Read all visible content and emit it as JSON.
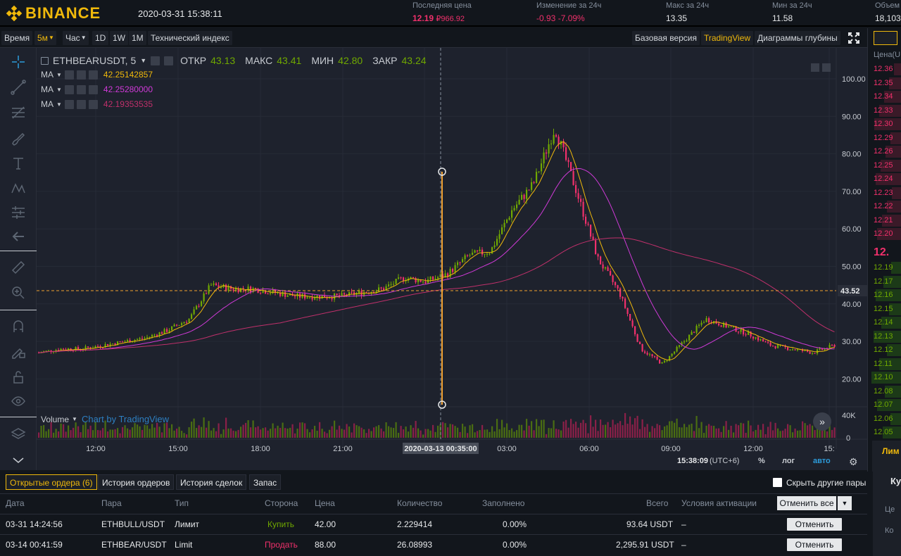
{
  "header": {
    "logo_text": "BINANCE",
    "datetime": "2020-03-31 15:38:11",
    "last_price_label": "Последняя цена",
    "last_price": "12.19",
    "last_price_rub": "₽966.92",
    "change_label": "Изменение за 24ч",
    "change_abs": "-0.93",
    "change_pct": "-7.09%",
    "high_label": "Макс за 24ч",
    "high_value": "13.35",
    "low_label": "Мин за 24ч",
    "low_value": "11.58",
    "volume_label": "Объем",
    "volume_value": "18,103,"
  },
  "toolbar": {
    "time": "Время",
    "m5": "5м",
    "hour": "Час",
    "d1": "1D",
    "w1": "1W",
    "mo1": "1M",
    "tech": "Технический индекс",
    "basic": "Базовая версия",
    "tv": "TradingView",
    "depth": "Диаграммы глубины"
  },
  "legend": {
    "symbol": "ETHBEARUSDT, 5",
    "open_label": "ОТКР",
    "open": "43.13",
    "high_label": "МАКС",
    "high": "43.41",
    "low_label": "МИН",
    "low": "42.80",
    "close_label": "ЗАКР",
    "close": "43.24",
    "ma_label": "MA",
    "ma1": "42.25142857",
    "ma2": "42.25280000",
    "ma3": "42.19353535",
    "volume_label": "Volume",
    "tv_brand": "Chart by TradingView"
  },
  "axis": {
    "y_ticks": [
      "100.00",
      "90.00",
      "80.00",
      "70.00",
      "60.00",
      "50.00",
      "40.00",
      "30.00",
      "20.00"
    ],
    "price_tag": "43.52",
    "vol_tick": "40K",
    "vol_zero": "0",
    "x_ticks": [
      "12:00",
      "15:00",
      "18:00",
      "21:00",
      "03:00",
      "06:00",
      "09:00",
      "12:00",
      "15:"
    ],
    "crosshair_date": "2020-03-13 00:35:00",
    "clock": "15:38:09",
    "tz": "(UTC+6)",
    "pct": "%",
    "log": "лог",
    "auto": "авто"
  },
  "chart_data": {
    "type": "line",
    "x": [
      "11:00",
      "12:00",
      "13:00",
      "14:00",
      "15:00",
      "16:00",
      "17:00",
      "17:30",
      "18:00",
      "19:00",
      "20:00",
      "21:00",
      "22:00",
      "23:00",
      "00:00",
      "01:00",
      "02:00",
      "03:00",
      "04:00",
      "05:00",
      "06:00",
      "07:00",
      "07:30",
      "08:00",
      "08:15",
      "08:30",
      "08:45",
      "09:00",
      "09:15",
      "09:30",
      "10:00",
      "10:30",
      "11:00",
      "12:00",
      "13:00",
      "14:00",
      "15:00",
      "15:30"
    ],
    "series": [
      {
        "values": [
          27,
          28,
          28,
          29,
          30,
          31,
          33,
          36,
          45,
          44,
          44,
          43,
          42,
          42,
          42,
          43,
          44,
          47,
          46,
          48,
          53,
          54,
          65,
          72,
          87,
          70,
          52,
          43,
          28,
          24,
          30,
          36,
          34,
          32,
          29,
          28,
          27,
          29
        ]
      }
    ],
    "ylim": [
      15,
      105
    ],
    "volume_ylim": [
      0,
      40000
    ]
  },
  "orders": {
    "tabs": [
      "Открытые ордера (6)",
      "История ордеров",
      "История сделок",
      "Запас"
    ],
    "hide_pairs": "Скрыть другие пары",
    "columns": [
      "Дата",
      "Пара",
      "Тип",
      "Сторона",
      "Цена",
      "Количество",
      "Заполнено",
      "Всего",
      "Условия активации"
    ],
    "cancel_all": "Отменить все",
    "rows": [
      {
        "date": "03-31 14:24:56",
        "pair": "ETHBULL/USDT",
        "type": "Лимит",
        "side": "Купить",
        "price": "42.00",
        "qty": "2.229414",
        "filled": "0.00%",
        "total": "93.64 USDT",
        "cond": "–",
        "action": "Отменить"
      },
      {
        "date": "03-14 00:41:59",
        "pair": "ETHBEAR/USDT",
        "type": "Limit",
        "side": "Продать",
        "price": "88.00",
        "qty": "26.08993",
        "filled": "0.00%",
        "total": "2,295.91 USDT",
        "cond": "–",
        "action": "Отменить"
      }
    ]
  },
  "orderbook": {
    "header": "Цена(U",
    "asks": [
      "12.36",
      "12.35",
      "12.34",
      "12.33",
      "12.30",
      "12.29",
      "12.26",
      "12.25",
      "12.24",
      "12.23",
      "12.22",
      "12.21",
      "12.20"
    ],
    "last": "12.",
    "bids": [
      "12.19",
      "12.17",
      "12.16",
      "12.15",
      "12.14",
      "12.13",
      "12.12",
      "12.11",
      "12.10",
      "12.08",
      "12.07",
      "12.06",
      "12.05"
    ],
    "side_labels": [
      "Лим",
      "Ку",
      "Це",
      "Ко"
    ]
  },
  "colors": {
    "accent": "#f0b90b",
    "up": "#70a800",
    "down": "#f0306b",
    "ma1": "#f0b90b",
    "ma2": "#d03ad8",
    "ma3": "#c0306b",
    "crosshair": "#f0a030"
  }
}
